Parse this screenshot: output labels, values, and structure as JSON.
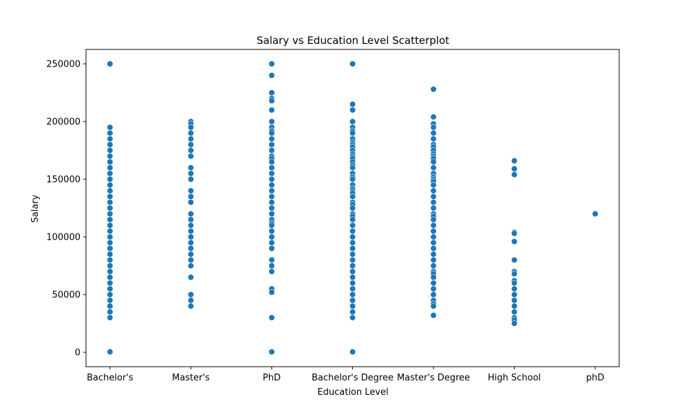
{
  "chart_data": {
    "type": "scatter",
    "title": "Salary vs Education Level Scatterplot",
    "xlabel": "Education Level",
    "ylabel": "Salary",
    "categories": [
      "Bachelor's",
      "Master's",
      "PhD",
      "Bachelor's Degree",
      "Master's Degree",
      "High School",
      "phD"
    ],
    "ylim": [
      -12500,
      262500
    ],
    "yticks": [
      0,
      50000,
      100000,
      150000,
      200000,
      250000
    ],
    "ytick_labels": [
      "0",
      "50000",
      "100000",
      "150000",
      "200000",
      "250000"
    ],
    "grid": false,
    "marker_color": "#1f77b4",
    "series": [
      {
        "category": "Bachelor's",
        "values": [
          250000,
          195000,
          190000,
          185000,
          180000,
          175000,
          170000,
          165000,
          160000,
          155000,
          150000,
          145000,
          140000,
          135000,
          130000,
          125000,
          120000,
          115000,
          110000,
          105000,
          100000,
          95000,
          90000,
          85000,
          80000,
          75000,
          70000,
          65000,
          60000,
          55000,
          50000,
          45000,
          40000,
          35000,
          30000,
          350
        ]
      },
      {
        "category": "Master's",
        "values": [
          200000,
          198000,
          195000,
          190000,
          185000,
          180000,
          175000,
          170000,
          160000,
          155000,
          150000,
          140000,
          135000,
          130000,
          120000,
          115000,
          110000,
          105000,
          100000,
          95000,
          90000,
          85000,
          80000,
          75000,
          65000,
          50000,
          45000,
          40000
        ]
      },
      {
        "category": "PhD",
        "values": [
          250000,
          240000,
          225000,
          220000,
          218000,
          210000,
          200000,
          195000,
          192000,
          190000,
          185000,
          180000,
          175000,
          170000,
          168000,
          165000,
          160000,
          155000,
          150000,
          145000,
          140000,
          135000,
          130000,
          125000,
          120000,
          115000,
          112000,
          110000,
          105000,
          100000,
          95000,
          90000,
          80000,
          75000,
          70000,
          55000,
          52000,
          30000,
          350
        ]
      },
      {
        "category": "Bachelor's Degree",
        "values": [
          250000,
          215000,
          210000,
          200000,
          195000,
          192000,
          190000,
          185000,
          182000,
          180000,
          178000,
          175000,
          172000,
          170000,
          168000,
          165000,
          162000,
          160000,
          155000,
          152000,
          150000,
          145000,
          142000,
          140000,
          138000,
          135000,
          130000,
          128000,
          125000,
          120000,
          118000,
          115000,
          110000,
          105000,
          100000,
          95000,
          90000,
          85000,
          80000,
          75000,
          70000,
          65000,
          60000,
          55000,
          50000,
          45000,
          40000,
          35000,
          30000,
          350
        ]
      },
      {
        "category": "Master's Degree",
        "values": [
          228000,
          204000,
          198000,
          195000,
          190000,
          185000,
          180000,
          178000,
          175000,
          172000,
          170000,
          168000,
          165000,
          160000,
          155000,
          152000,
          150000,
          148000,
          145000,
          140000,
          135000,
          130000,
          125000,
          120000,
          118000,
          115000,
          110000,
          105000,
          100000,
          95000,
          90000,
          85000,
          80000,
          75000,
          70000,
          68000,
          65000,
          60000,
          55000,
          50000,
          45000,
          42000,
          40000,
          32000
        ]
      },
      {
        "category": "High School",
        "values": [
          166000,
          159000,
          154000,
          104000,
          103000,
          96000,
          80000,
          70000,
          68000,
          62000,
          60000,
          55000,
          50000,
          45000,
          40000,
          35000,
          30000,
          28000,
          25000
        ]
      },
      {
        "category": "phD",
        "values": [
          120000
        ]
      }
    ]
  }
}
